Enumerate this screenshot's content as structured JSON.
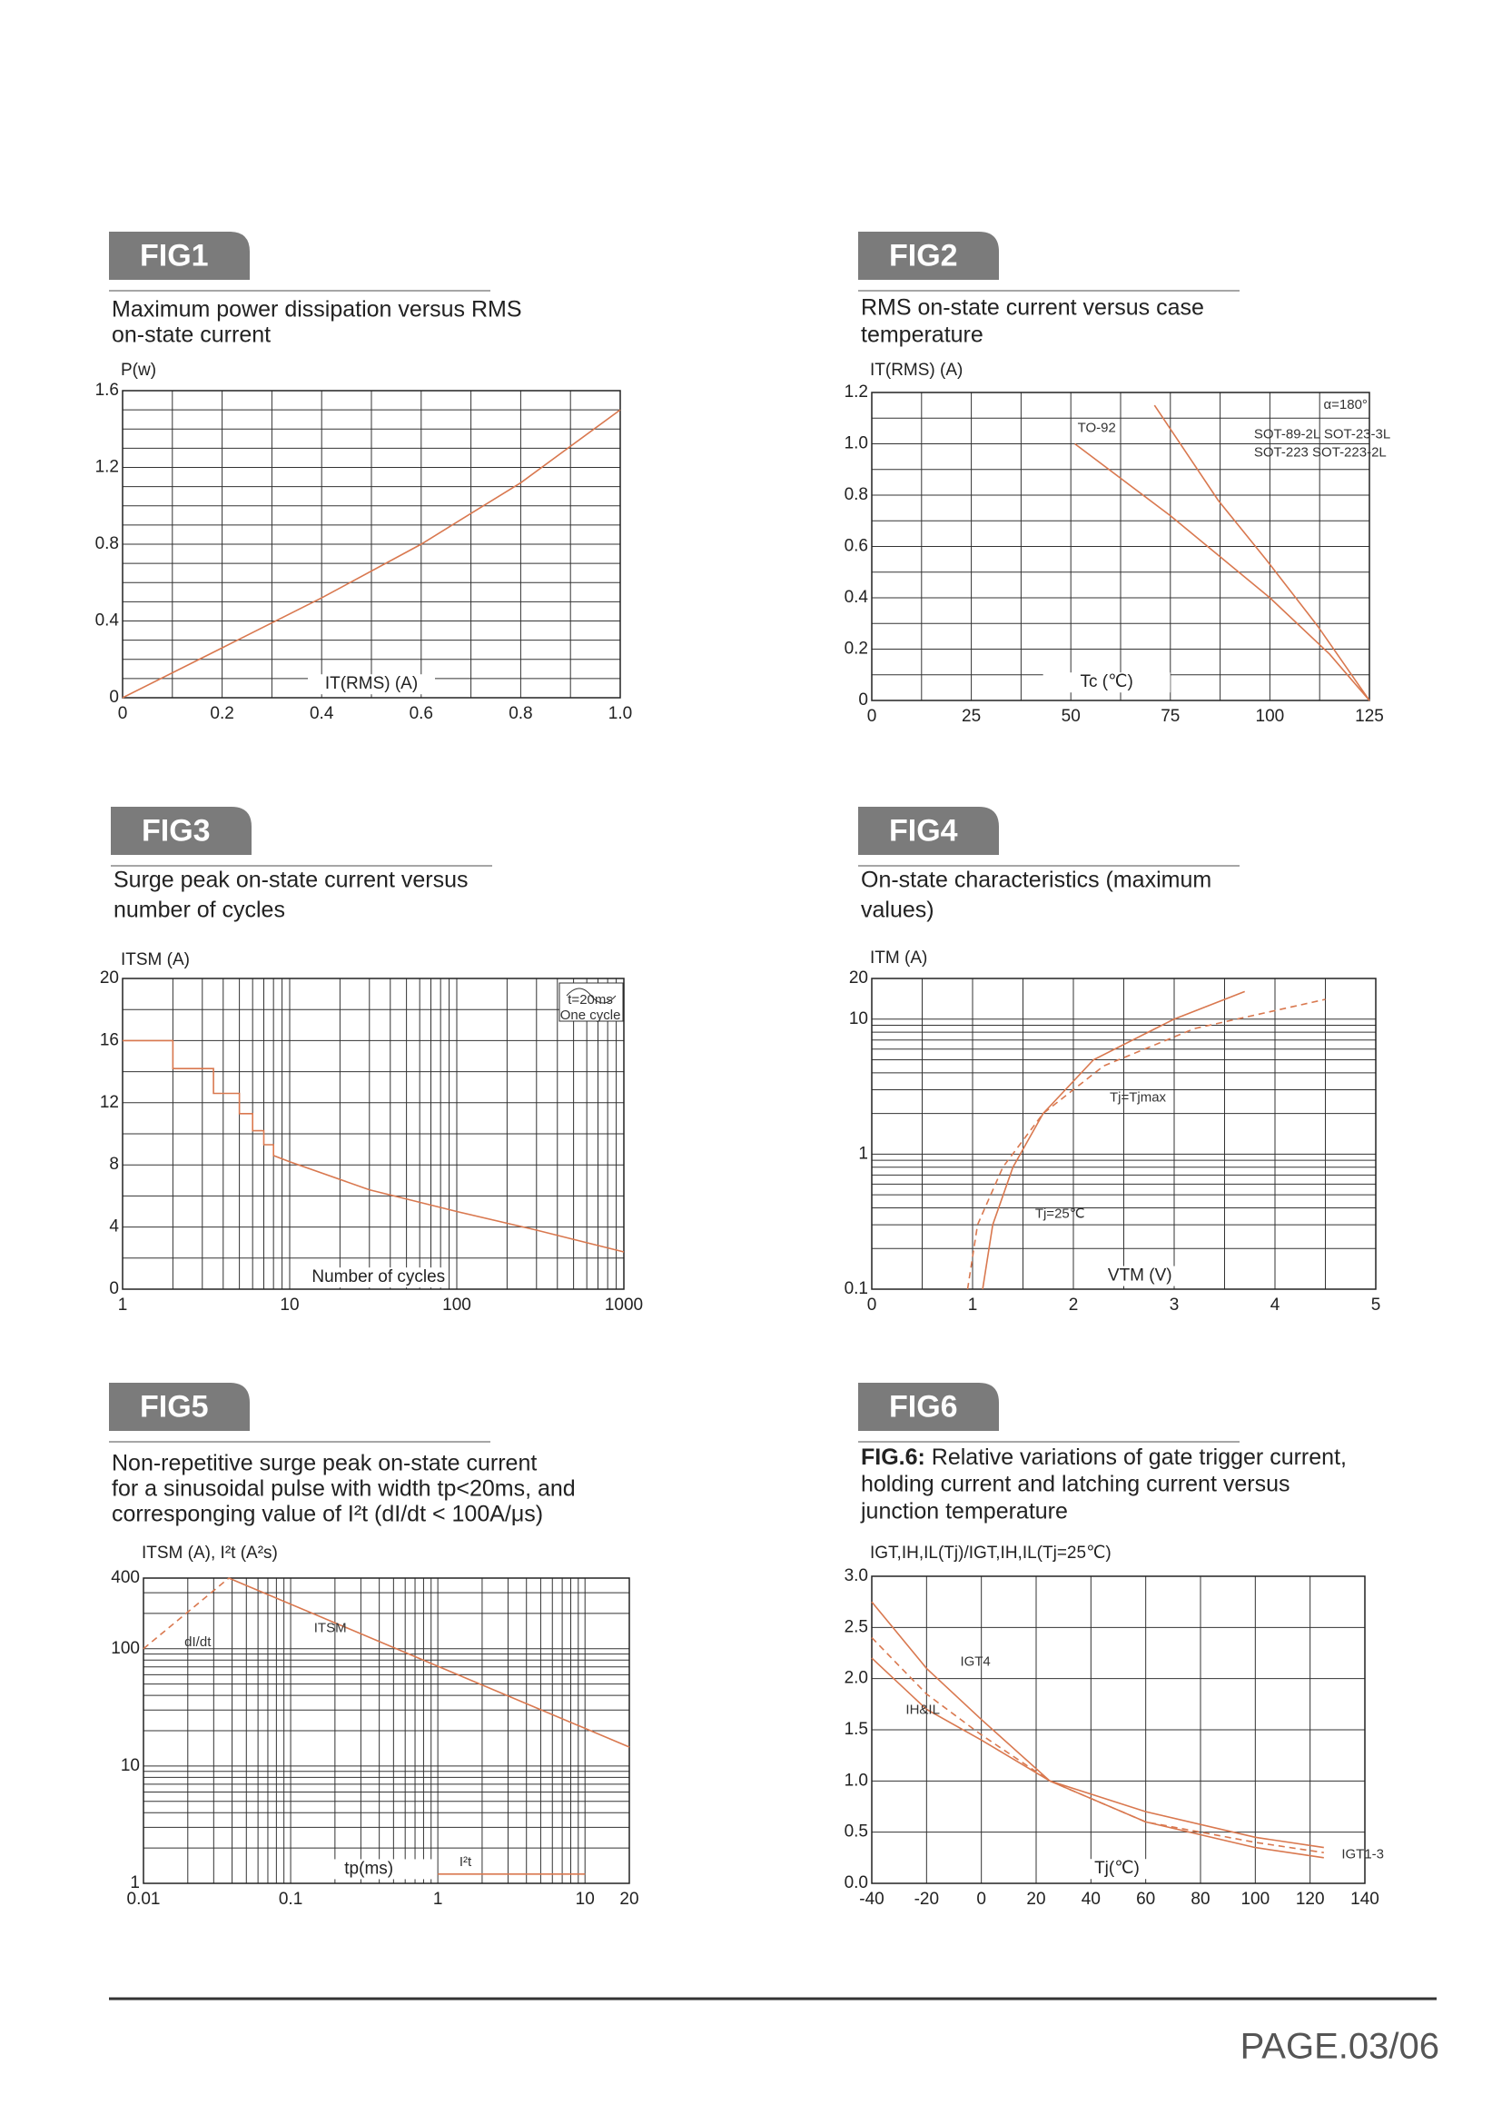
{
  "page_label": "PAGE.03/06",
  "chart_data": [
    {
      "type": "line",
      "label": "FIG1",
      "title": [
        "Maximum power dissipation versus RMS",
        "on-state current"
      ],
      "ylabel": "P(w)",
      "xlabel": "IT(RMS) (A)",
      "xlim": [
        0,
        1
      ],
      "ylim": [
        0,
        1.6
      ],
      "xticks": [
        0,
        0.2,
        0.4,
        0.6,
        0.8,
        {
          "value": 1,
          "label": "1.0"
        }
      ],
      "yticks": [
        0,
        0.4,
        0.8,
        1.2,
        1.6
      ],
      "xgrid": [
        0,
        0.1,
        0.2,
        0.3,
        0.4,
        0.5,
        0.6,
        0.7,
        0.8,
        0.9,
        1
      ],
      "ygrid": [
        0,
        0.1,
        0.2,
        0.3,
        0.4,
        0.5,
        0.6,
        0.7,
        0.8,
        0.9,
        1,
        1.1,
        1.2,
        1.3,
        1.4,
        1.5,
        1.6
      ],
      "series": [
        {
          "color": "#d9784f",
          "x": [
            0,
            0.2,
            0.4,
            0.6,
            0.8,
            1
          ],
          "values": [
            0,
            0.26,
            0.52,
            0.8,
            1.12,
            1.5
          ]
        }
      ],
      "annotations": []
    },
    {
      "type": "line",
      "label": "FIG2",
      "title": [
        "RMS on-state current versus case",
        "temperature"
      ],
      "ylabel": "IT(RMS) (A)",
      "xlabel": "Tc (℃)",
      "xlim": [
        0,
        125
      ],
      "ylim": [
        0,
        1.2
      ],
      "xticks": [
        0,
        25,
        50,
        75,
        100,
        125
      ],
      "yticks": [
        0,
        0.2,
        0.4,
        0.6,
        0.8,
        {
          "value": 1,
          "label": "1.0"
        },
        1.2
      ],
      "xgrid": [
        0,
        12.5,
        25,
        37.5,
        50,
        62.5,
        75,
        87.5,
        100,
        112.5,
        125
      ],
      "ygrid": [
        0,
        0.1,
        0.2,
        0.3,
        0.4,
        0.5,
        0.6,
        0.7,
        0.8,
        0.9,
        1,
        1.1,
        1.2
      ],
      "series": [
        {
          "color": "#d9784f",
          "x": [
            51,
            75,
            100,
            115,
            125
          ],
          "values": [
            1,
            0.72,
            0.4,
            0.18,
            0
          ]
        },
        {
          "color": "#d9784f",
          "x": [
            71,
            87,
            99,
            112,
            125
          ],
          "values": [
            1.15,
            0.78,
            0.55,
            0.29,
            0
          ]
        }
      ],
      "annotations": [
        "TO-92",
        "SOT-89-2L SOT-23-3L",
        "SOT-223 SOT-223-2L",
        "α=180°"
      ]
    },
    {
      "type": "line",
      "label": "FIG3",
      "title": [
        "Surge peak on-state current versus",
        "number of cycles"
      ],
      "ylabel": "ITSM (A)",
      "xlabel": "Number of cycles",
      "xscale": "log",
      "xlim": [
        1,
        1000
      ],
      "ylim": [
        0,
        20
      ],
      "xticks": [
        1,
        10,
        100,
        1000
      ],
      "yticks": [
        0,
        4,
        8,
        12,
        16,
        20
      ],
      "xgrid": [
        1,
        2,
        3,
        4,
        5,
        6,
        7,
        8,
        9,
        10,
        20,
        30,
        40,
        50,
        60,
        70,
        80,
        90,
        100,
        200,
        300,
        400,
        500,
        600,
        700,
        800,
        900,
        1000
      ],
      "ygrid": [
        0,
        2,
        4,
        6,
        8,
        10,
        12,
        14,
        16,
        18,
        20
      ],
      "series": [
        {
          "color": "#d9784f",
          "x": [
            1,
            2,
            2,
            3.5,
            3.5,
            5,
            5,
            6,
            6,
            7,
            7,
            8,
            8,
            10,
            30,
            100,
            300,
            1000
          ],
          "values": [
            16,
            16,
            14.2,
            14.2,
            12.6,
            12.6,
            11.3,
            11.3,
            10.2,
            10.2,
            9.3,
            9.3,
            8.6,
            8.2,
            6.4,
            5,
            3.8,
            2.4
          ]
        }
      ],
      "annotations": [
        "t=20ms",
        "One cycle"
      ]
    },
    {
      "type": "line",
      "label": "FIG4",
      "title": [
        "On-state characteristics (maximum",
        "values)"
      ],
      "ylabel": "ITM (A)",
      "xlabel": "VTM (V)",
      "yscale": "log",
      "xlim": [
        0,
        5
      ],
      "ylim": [
        0.1,
        20
      ],
      "xticks": [
        0,
        1,
        2,
        3,
        4,
        5
      ],
      "yticks": [
        0.1,
        1,
        10,
        20
      ],
      "xgrid": [
        0,
        0.5,
        1,
        1.5,
        2,
        2.5,
        3,
        3.5,
        4,
        4.5,
        5
      ],
      "ygrid": [
        0.1,
        0.2,
        0.3,
        0.4,
        0.5,
        0.6,
        0.7,
        0.8,
        0.9,
        1,
        2,
        3,
        4,
        5,
        6,
        7,
        8,
        9,
        10,
        20
      ],
      "series": [
        {
          "color": "#d9784f",
          "x": [
            1.1,
            1.2,
            1.4,
            1.7,
            2.2,
            3,
            3.7
          ],
          "values": [
            0.1,
            0.3,
            0.8,
            2,
            5,
            10,
            16
          ]
        },
        {
          "color": "#d9784f",
          "dash": true,
          "x": [
            0.95,
            1.05,
            1.3,
            1.7,
            2.3,
            3.2,
            4.5
          ],
          "values": [
            0.1,
            0.3,
            0.8,
            2,
            4.5,
            8.5,
            14
          ]
        }
      ],
      "annotations": [
        "Tj=Tjmax",
        "Tj=25℃"
      ]
    },
    {
      "type": "line",
      "label": "FIG5",
      "title": [
        "Non-repetitive surge peak on-state current",
        "for a sinusoidal pulse with width tp<20ms, and",
        "corresponging value of I²t (dI/dt < 100A/μs)"
      ],
      "ylabel": "ITSM (A), I²t (A²s)",
      "xlabel": "tp(ms)",
      "xscale": "log",
      "yscale": "log",
      "xlim": [
        0.01,
        20
      ],
      "ylim": [
        1,
        400
      ],
      "xticks": [
        0.01,
        0.1,
        1,
        10,
        20
      ],
      "yticks": [
        1,
        10,
        100,
        400
      ],
      "xgrid": [
        0.01,
        0.02,
        0.03,
        0.04,
        0.05,
        0.06,
        0.07,
        0.08,
        0.09,
        0.1,
        0.2,
        0.3,
        0.4,
        0.5,
        0.6,
        0.7,
        0.8,
        0.9,
        1,
        2,
        3,
        4,
        5,
        6,
        7,
        8,
        9,
        10,
        20
      ],
      "ygrid": [
        1,
        2,
        3,
        4,
        5,
        6,
        7,
        8,
        9,
        10,
        20,
        30,
        40,
        50,
        60,
        70,
        80,
        90,
        100,
        200,
        300,
        400
      ],
      "series": [
        {
          "color": "#d9784f",
          "x": [
            0.038,
            20
          ],
          "values": [
            400,
            14.5
          ]
        },
        {
          "color": "#d9784f",
          "dash": true,
          "x": [
            0.01,
            0.038
          ],
          "values": [
            100,
            400
          ]
        },
        {
          "color": "#d9784f",
          "x": [
            1,
            10
          ],
          "values": [
            1.2,
            1.2
          ]
        }
      ],
      "annotations": [
        "dI/dt",
        "ITSM",
        "I²t"
      ]
    },
    {
      "type": "line",
      "label": "FIG6",
      "title_lead": "FIG.6:",
      "title": [
        " Relative variations of gate trigger current,",
        "holding current and latching current versus",
        "junction temperature"
      ],
      "ylabel": "IGT,IH,IL(Tj)/IGT,IH,IL(Tj=25℃)",
      "xlabel": "Tj(℃)",
      "xlim": [
        -40,
        140
      ],
      "ylim": [
        0,
        3
      ],
      "xticks": [
        -40,
        -20,
        0,
        20,
        40,
        60,
        80,
        100,
        120,
        140
      ],
      "yticks": [
        {
          "value": 0,
          "label": "0.0"
        },
        0.5,
        {
          "value": 1,
          "label": "1.0"
        },
        1.5,
        {
          "value": 2,
          "label": "2.0"
        },
        2.5,
        {
          "value": 3,
          "label": "3.0"
        }
      ],
      "xgrid": [
        -40,
        -20,
        0,
        20,
        40,
        60,
        80,
        100,
        120,
        140
      ],
      "ygrid": [
        0,
        0.5,
        1,
        1.5,
        2,
        2.5,
        3
      ],
      "series": [
        {
          "color": "#d9784f",
          "x": [
            -40,
            -20,
            0,
            25,
            60,
            100,
            125
          ],
          "values": [
            2.75,
            2.1,
            1.6,
            1,
            0.6,
            0.35,
            0.25
          ]
        },
        {
          "color": "#d9784f",
          "x": [
            -40,
            -20,
            0,
            25,
            60,
            100,
            125
          ],
          "values": [
            2.2,
            1.7,
            1.4,
            1,
            0.7,
            0.45,
            0.35
          ]
        },
        {
          "color": "#d9784f",
          "dash": true,
          "x": [
            -40,
            -20,
            0,
            25,
            60,
            100,
            125
          ],
          "values": [
            2.4,
            1.85,
            1.45,
            1,
            0.6,
            0.4,
            0.3
          ]
        }
      ],
      "annotations": [
        "IGT4",
        "IH&IL",
        "IGT1-3"
      ]
    }
  ]
}
